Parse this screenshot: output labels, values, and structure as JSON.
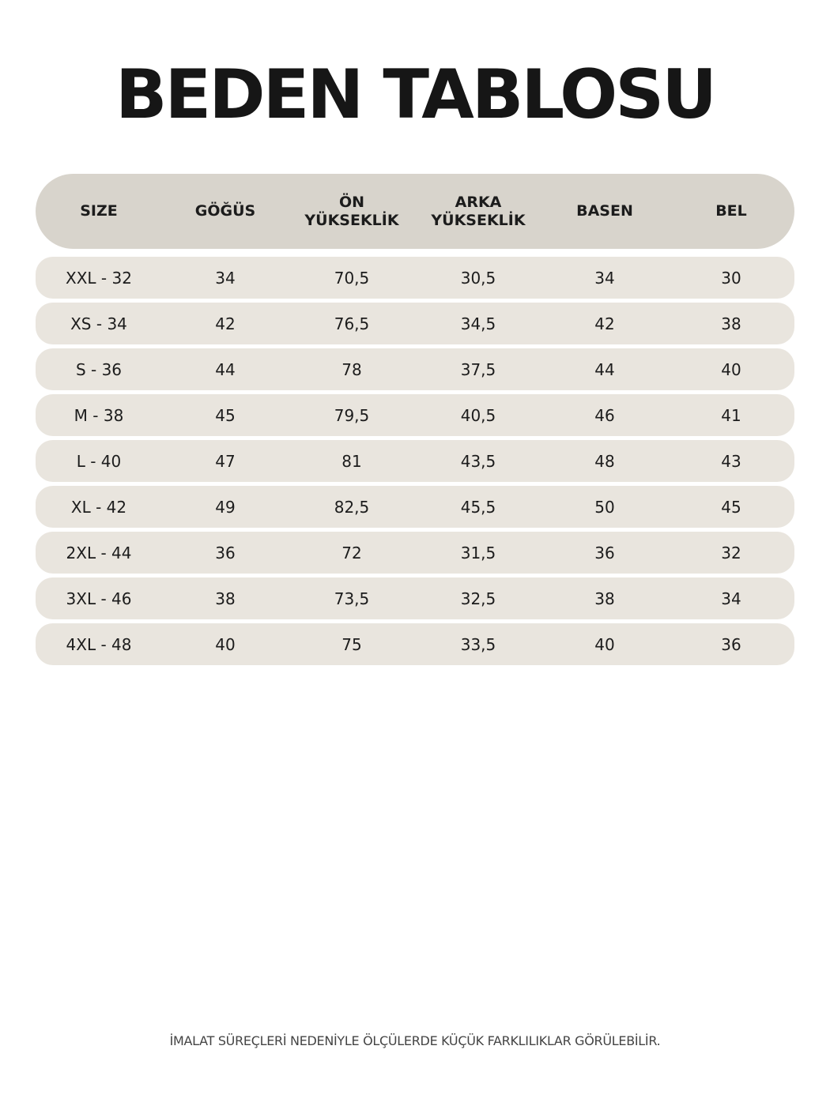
{
  "header": {
    "title": "BEDEN TABLOSU"
  },
  "table": {
    "columns": [
      [
        "SIZE"
      ],
      [
        "GÖĞÜS"
      ],
      [
        "ÖN",
        "YÜKSEKLİK"
      ],
      [
        "ARKA",
        "YÜKSEKLİK"
      ],
      [
        "BASEN"
      ],
      [
        "BEL"
      ]
    ],
    "rows": [
      [
        "XXL - 32",
        "34",
        "70,5",
        "30,5",
        "34",
        "30"
      ],
      [
        "XS - 34",
        "42",
        "76,5",
        "34,5",
        "42",
        "38"
      ],
      [
        "S - 36",
        "44",
        "78",
        "37,5",
        "44",
        "40"
      ],
      [
        "M - 38",
        "45",
        "79,5",
        "40,5",
        "46",
        "41"
      ],
      [
        "L - 40",
        "47",
        "81",
        "43,5",
        "48",
        "43"
      ],
      [
        "XL - 42",
        "49",
        "82,5",
        "45,5",
        "50",
        "45"
      ],
      [
        "2XL - 44",
        "36",
        "72",
        "31,5",
        "36",
        "32"
      ],
      [
        "3XL - 46",
        "38",
        "73,5",
        "32,5",
        "38",
        "34"
      ],
      [
        "4XL - 48",
        "40",
        "75",
        "33,5",
        "40",
        "36"
      ]
    ]
  },
  "footer": {
    "note": "İMALAT SÜREÇLERİ NEDENİYLE ÖLÇÜLERDE KÜÇÜK FARKLILIKLAR GÖRÜLEBİLİR."
  }
}
